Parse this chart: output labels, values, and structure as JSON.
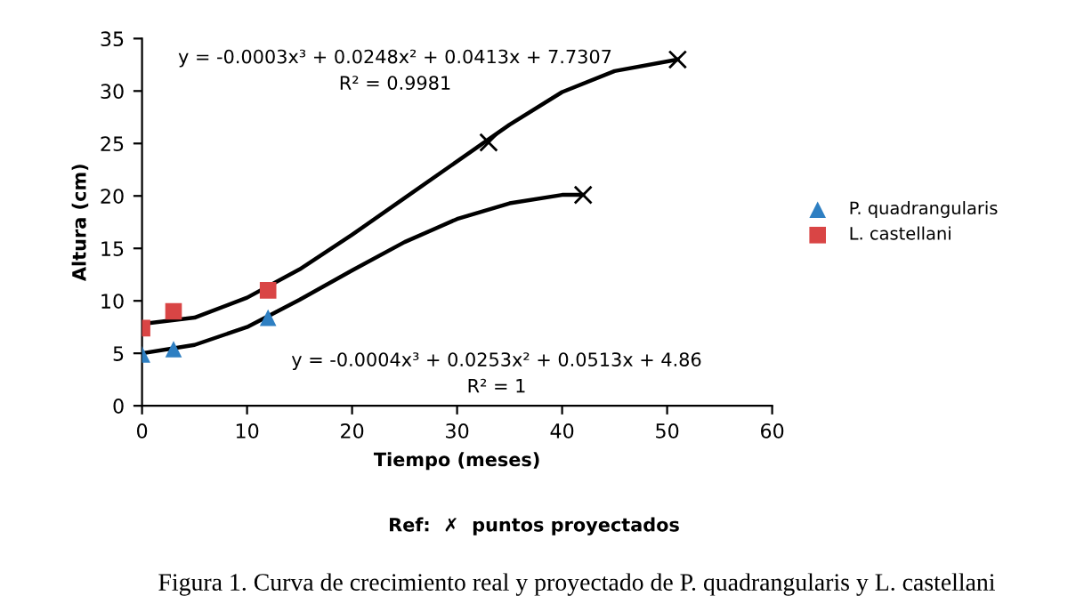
{
  "chart_data": {
    "type": "scatter",
    "xlabel": "Tiempo (meses)",
    "ylabel": "Altura (cm)",
    "xlim": [
      0,
      60
    ],
    "ylim": [
      0,
      35
    ],
    "xticks": [
      0,
      10,
      20,
      30,
      40,
      50,
      60
    ],
    "yticks": [
      0,
      5,
      10,
      15,
      20,
      25,
      30,
      35
    ],
    "grid": false,
    "legend": "right",
    "series": [
      {
        "type": "line",
        "color": "#000000",
        "marker": "none",
        "x": [
          0,
          5,
          10,
          15,
          20,
          25,
          30,
          35,
          40,
          45,
          51
        ],
        "values": [
          7.8,
          8.4,
          10.3,
          13,
          16.3,
          19.8,
          23.3,
          26.8,
          29.9,
          31.9,
          33
        ]
      },
      {
        "type": "line",
        "color": "#000000",
        "marker": "none",
        "x": [
          0,
          5,
          10,
          15,
          20,
          25,
          30,
          35,
          40,
          42
        ],
        "values": [
          5,
          5.8,
          7.5,
          10.1,
          12.9,
          15.6,
          17.8,
          19.3,
          20.1,
          20.1
        ]
      },
      {
        "name": "P. quadrangularis",
        "color": "#2e7fc2",
        "marker": "triangle",
        "x": [
          0,
          3,
          12
        ],
        "values": [
          4.9,
          5.4,
          8.4
        ]
      },
      {
        "name": "L. castellani",
        "color": "#d94545",
        "marker": "square",
        "x": [
          0,
          3,
          12
        ],
        "values": [
          7.4,
          9,
          11
        ]
      },
      {
        "color": "#000000",
        "marker": "cross",
        "x": [
          33,
          51,
          42
        ],
        "values": [
          25.1,
          33,
          20.1
        ]
      }
    ],
    "annotations": [
      "y = -0.0003x³ + 0.0248x² + 0.0413x + 7.7307",
      "R² = 0.9981",
      "y = -0.0004x³ + 0.0253x² + 0.0513x + 4.86",
      "R² = 1",
      "Ref:  ✗  puntos proyectados",
      "Figura 1. Curva de crecimiento real y proyectado de P. quadrangularis y L. castellani"
    ]
  }
}
